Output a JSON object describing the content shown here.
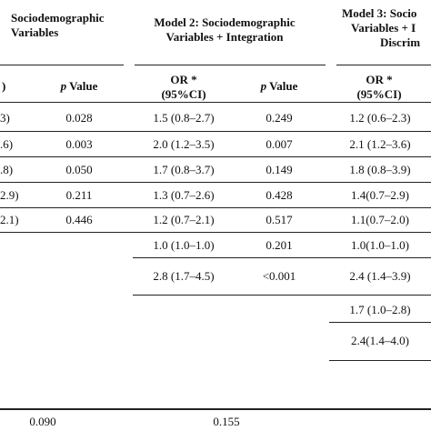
{
  "model1": {
    "title_line1": "Sociodemographic",
    "title_line2": "Variables"
  },
  "model2": {
    "title_line1": "Model 2: Sociodemographic",
    "title_line2": "Variables + Integration"
  },
  "model3": {
    "title_line1": "Model 3: Socio",
    "title_line2": "Variables + I",
    "title_line3": "Discrim"
  },
  "headers": {
    "col_a_fragment": ")",
    "p_value_italic": "p",
    "p_value_rest": " Value",
    "or_line1": "OR *",
    "or_line2": "(95%CI)"
  },
  "rows": [
    {
      "m1_or": "3)",
      "m1_p": "0.028",
      "m2_or": "1.5 (0.8–2.7)",
      "m2_p": "0.249",
      "m3_or": "1.2 (0.6–2.3)"
    },
    {
      "m1_or": ".6)",
      "m1_p": "0.003",
      "m2_or": "2.0 (1.2–3.5)",
      "m2_p": "0.007",
      "m3_or": "2.1 (1.2–3.6)"
    },
    {
      "m1_or": ".8)",
      "m1_p": "0.050",
      "m2_or": "1.7 (0.8–3.7)",
      "m2_p": "0.149",
      "m3_or": "1.8 (0.8–3.9)"
    },
    {
      "m1_or": "2.9)",
      "m1_p": "0.211",
      "m2_or": "1.3 (0.7–2.6)",
      "m2_p": "0.428",
      "m3_or": "1.4(0.7–2.9)"
    },
    {
      "m1_or": "2.1)",
      "m1_p": "0.446",
      "m2_or": "1.2 (0.7–2.1)",
      "m2_p": "0.517",
      "m3_or": "1.1(0.7–2.0)"
    },
    {
      "m1_or": "",
      "m1_p": "",
      "m2_or": "1.0 (1.0–1.0)",
      "m2_p": "0.201",
      "m3_or": "1.0(1.0–1.0)"
    },
    {
      "m1_or": "",
      "m1_p": "",
      "m2_or": "2.8 (1.7–4.5)",
      "m2_p": "<0.001",
      "m3_or": "2.4 (1.4–3.9)"
    },
    {
      "m1_or": "",
      "m1_p": "",
      "m2_or": "",
      "m2_p": "",
      "m3_or": "1.7 (1.0–2.8)"
    },
    {
      "m1_or": "",
      "m1_p": "",
      "m2_or": "",
      "m2_p": "",
      "m3_or": "2.4(1.4–4.0)"
    }
  ],
  "footer": {
    "m1_value": "0.090",
    "m2_value": "0.155"
  }
}
